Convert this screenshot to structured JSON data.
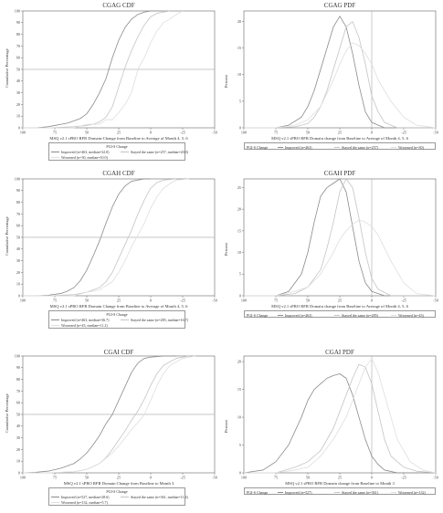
{
  "colors": {
    "improved": "#8a8a8a",
    "same": "#c4c4c4",
    "worsened": "#dedede",
    "axis": "#666",
    "refline": "#b5b5b5"
  },
  "chart_data": [
    {
      "type": "line",
      "title": "CGAG CDF",
      "xlabel": "MSQ v2.1 sPRO RFR Domain-Change from Baseline to Average of Month 4, 5, 6",
      "ylabel": "Cumulative Percentage",
      "xlim": [
        100,
        -50
      ],
      "ylim": [
        0,
        100
      ],
      "xticks": [
        100,
        75,
        50,
        25,
        0,
        -25,
        -50
      ],
      "yticks": [
        0,
        10,
        20,
        30,
        40,
        50,
        60,
        70,
        80,
        90,
        100
      ],
      "refline_y": 50,
      "legend": {
        "title": "PGI-S Change",
        "items": [
          "Improved (n=463, median=32.0)",
          "Stayed the same (n=257, median=20.0)",
          "Worsened (n=30, median=10.0)"
        ]
      },
      "series": [
        {
          "name": "Improved (n=463, median=32.0)",
          "x": [
            100,
            95,
            90,
            85,
            80,
            75,
            70,
            65,
            60,
            55,
            50,
            45,
            40,
            35,
            30,
            25,
            20,
            15,
            10,
            5,
            0,
            -5,
            -10
          ],
          "y": [
            0,
            0,
            0,
            0.5,
            1,
            2,
            3,
            4,
            6,
            8,
            12,
            20,
            30,
            42,
            60,
            75,
            86,
            93,
            97,
            99,
            100,
            100,
            100
          ]
        },
        {
          "name": "Stayed the same (n=257, median=20.0)",
          "x": [
            100,
            90,
            80,
            70,
            60,
            50,
            45,
            40,
            35,
            30,
            25,
            20,
            15,
            10,
            5,
            0,
            -5,
            -10,
            -15
          ],
          "y": [
            0,
            0,
            0,
            0.5,
            1,
            2,
            3,
            5,
            9,
            18,
            35,
            52,
            66,
            78,
            88,
            95,
            98,
            99,
            100
          ]
        },
        {
          "name": "Worsened (n=30, median=10.0)",
          "x": [
            100,
            80,
            60,
            50,
            40,
            35,
            30,
            25,
            20,
            15,
            10,
            5,
            0,
            -5,
            -10,
            -15,
            -20,
            -25
          ],
          "y": [
            0,
            0,
            0,
            3,
            3,
            7,
            7,
            13,
            20,
            30,
            50,
            60,
            73,
            83,
            90,
            93,
            97,
            100
          ]
        }
      ]
    },
    {
      "type": "line",
      "title": "CGAG PDF",
      "xlabel": "MSQ v2.1 sPRO RFR Domain change from Baseline to Average of Month 4, 5, 6",
      "ylabel": "Percent",
      "xlim": [
        100,
        -50
      ],
      "ylim": [
        0,
        22
      ],
      "xticks": [
        100,
        75,
        50,
        25,
        0,
        -25,
        -50
      ],
      "yticks": [
        0,
        5,
        10,
        15,
        20
      ],
      "refline_x": 0,
      "legend": {
        "title": "PGI-S Change",
        "items": [
          "Improved (n=463)",
          "Stayed the same (n=257)",
          "Worsened (n=30)"
        ]
      },
      "series": [
        {
          "name": "Improved (n=463)",
          "x": [
            100,
            75,
            65,
            55,
            50,
            45,
            40,
            35,
            30,
            25,
            20,
            15,
            10,
            5,
            0,
            -10,
            -25,
            -50
          ],
          "y": [
            0,
            0,
            0.5,
            2,
            4,
            7,
            11,
            15,
            19,
            21,
            19,
            14,
            8,
            3,
            1,
            0,
            0,
            0
          ]
        },
        {
          "name": "Stayed the same (n=257)",
          "x": [
            100,
            75,
            60,
            50,
            45,
            40,
            35,
            30,
            25,
            20,
            15,
            10,
            5,
            0,
            -5,
            -10,
            -20,
            -50
          ],
          "y": [
            0,
            0,
            0.2,
            0.8,
            2,
            4,
            7,
            11,
            15,
            19,
            20,
            17,
            12,
            6,
            3,
            1,
            0,
            0
          ]
        },
        {
          "name": "Worsened (n=30)",
          "x": [
            100,
            75,
            60,
            50,
            40,
            35,
            30,
            25,
            20,
            15,
            10,
            5,
            0,
            -5,
            -10,
            -15,
            -25,
            -35,
            -50
          ],
          "y": [
            0,
            0,
            0.5,
            1.5,
            4,
            6.5,
            9,
            12,
            14.5,
            16,
            15.5,
            14,
            12,
            9,
            7,
            5,
            2,
            0.5,
            0
          ]
        }
      ]
    },
    {
      "type": "line",
      "title": "CGAH CDF",
      "xlabel": "MSQ v2.1 sPRO RFR Domain Change from Baseline to Average of Month 4, 5, 6",
      "ylabel": "Cumulative Percentage",
      "xlim": [
        100,
        -50
      ],
      "ylim": [
        0,
        100
      ],
      "xticks": [
        100,
        75,
        50,
        25,
        0,
        -25,
        -50
      ],
      "yticks": [
        0,
        10,
        20,
        30,
        40,
        50,
        60,
        70,
        80,
        90,
        100
      ],
      "refline_y": 50,
      "legend": {
        "title": "PGI-S Change",
        "items": [
          "Improved (n=463, median=36.7)",
          "Stayed the same (n=285, median=16.7)",
          "Worsened (n=43, median=11.2)"
        ]
      },
      "series": [
        {
          "name": "Improved (n=463, median=36.7)",
          "x": [
            100,
            90,
            80,
            70,
            65,
            60,
            55,
            50,
            45,
            40,
            35,
            30,
            25,
            20,
            15,
            10,
            5,
            0
          ],
          "y": [
            0,
            0,
            0.5,
            2,
            4,
            7,
            13,
            22,
            34,
            47,
            62,
            76,
            87,
            94,
            98,
            99,
            100,
            100
          ]
        },
        {
          "name": "Stayed the same (n=285, median=16.7)",
          "x": [
            100,
            80,
            60,
            50,
            40,
            35,
            30,
            25,
            20,
            15,
            10,
            5,
            0,
            -5,
            -10,
            -20
          ],
          "y": [
            0,
            0,
            1,
            3,
            7,
            12,
            20,
            32,
            44,
            56,
            70,
            82,
            92,
            97,
            99,
            100
          ]
        },
        {
          "name": "Worsened (n=43, median=11.2)",
          "x": [
            100,
            60,
            50,
            40,
            30,
            25,
            20,
            15,
            10,
            5,
            0,
            -5,
            -10,
            -15,
            -20,
            -30
          ],
          "y": [
            0,
            0,
            3,
            5,
            12,
            20,
            30,
            42,
            52,
            62,
            75,
            85,
            92,
            96,
            99,
            100
          ]
        }
      ]
    },
    {
      "type": "line",
      "title": "CGAH PDF",
      "xlabel": "MSQ v2.1 sPRO RFR Domain change from Baseline to Average of Month 4, 5, 6",
      "ylabel": "Percent",
      "xlim": [
        100,
        -50
      ],
      "ylim": [
        0,
        27
      ],
      "xticks": [
        100,
        75,
        50,
        25,
        0,
        -25,
        -50
      ],
      "yticks": [
        0,
        5,
        10,
        15,
        20,
        25
      ],
      "refline_x": 0,
      "legend": {
        "title": "PGI-S Change",
        "items": [
          "Improved (n=463)",
          "Stayed the same (n=285)",
          "Worsened (n=43)"
        ]
      },
      "series": [
        {
          "name": "Improved (n=463)",
          "x": [
            100,
            75,
            65,
            55,
            50,
            45,
            40,
            35,
            30,
            25,
            20,
            15,
            10,
            5,
            0,
            -10,
            -50
          ],
          "y": [
            0,
            0,
            1,
            5,
            10,
            17,
            23,
            25,
            26,
            27,
            24,
            16,
            8,
            3,
            1,
            0,
            0
          ]
        },
        {
          "name": "Stayed the same (n=285)",
          "x": [
            100,
            75,
            60,
            50,
            40,
            35,
            30,
            25,
            20,
            15,
            10,
            5,
            0,
            -5,
            -15,
            -50
          ],
          "y": [
            0,
            0,
            0.5,
            2,
            6,
            11,
            17,
            24,
            27,
            25,
            18,
            10,
            4,
            1.5,
            0,
            0
          ]
        },
        {
          "name": "Worsened (n=43)",
          "x": [
            100,
            75,
            60,
            50,
            40,
            30,
            25,
            20,
            15,
            10,
            5,
            0,
            -5,
            -10,
            -15,
            -25,
            -35,
            -50
          ],
          "y": [
            0,
            0,
            1,
            2,
            5,
            10,
            13,
            15,
            16.5,
            17.5,
            17,
            16,
            14,
            11,
            8,
            3,
            0.5,
            0
          ]
        }
      ]
    },
    {
      "type": "line",
      "title": "CGAI CDF",
      "xlabel": "MSQ v2.1 sPRO RFR Domain Change from Baseline to Month 3",
      "ylabel": "Cumulative Percentage",
      "xlim": [
        100,
        -50
      ],
      "ylim": [
        0,
        100
      ],
      "xticks": [
        100,
        75,
        50,
        25,
        0,
        -25,
        -50
      ],
      "yticks": [
        0,
        10,
        20,
        30,
        40,
        50,
        60,
        70,
        80,
        90,
        100
      ],
      "refline_y": 50,
      "legend": {
        "title": "PGI-S Change",
        "items": [
          "Improved (n=527, median=28.6)",
          "Stayed the same (n=361, median=11.4)",
          "Worsened (n=132, median=5.7)"
        ]
      },
      "series": [
        {
          "name": "Improved (n=527, median=28.6)",
          "x": [
            100,
            90,
            80,
            70,
            60,
            55,
            50,
            45,
            40,
            35,
            30,
            25,
            20,
            15,
            10,
            5,
            0,
            -10,
            -20
          ],
          "y": [
            0,
            0.5,
            1.5,
            4,
            8,
            12,
            17,
            24,
            32,
            42,
            50,
            62,
            74,
            86,
            94,
            98,
            99,
            100,
            100
          ]
        },
        {
          "name": "Stayed the same (n=361, median=11.4)",
          "x": [
            100,
            80,
            60,
            50,
            40,
            35,
            30,
            25,
            20,
            15,
            10,
            5,
            0,
            -5,
            -10,
            -20,
            -30
          ],
          "y": [
            0,
            0,
            1,
            3,
            8,
            13,
            20,
            28,
            36,
            45,
            53,
            63,
            75,
            85,
            92,
            98,
            100
          ]
        },
        {
          "name": "Worsened (n=132, median=5.7)",
          "x": [
            100,
            80,
            60,
            50,
            40,
            30,
            25,
            20,
            15,
            10,
            5,
            0,
            -5,
            -10,
            -15,
            -25,
            -35
          ],
          "y": [
            0,
            0,
            1,
            3,
            8,
            17,
            23,
            30,
            37,
            43,
            50,
            62,
            75,
            85,
            92,
            98,
            100
          ]
        }
      ]
    },
    {
      "type": "line",
      "title": "CGAI PDF",
      "xlabel": "MSQ v2.1 sPRO RFR Domain change from Baseline to Month 3",
      "ylabel": "Percent",
      "xlim": [
        100,
        -50
      ],
      "ylim": [
        0,
        21
      ],
      "xticks": [
        100,
        75,
        50,
        25,
        0,
        -25,
        -50
      ],
      "yticks": [
        0,
        5,
        10,
        15,
        20
      ],
      "refline_x": 0,
      "legend": {
        "title": "PGI-S Change",
        "items": [
          "Improved (n=527)",
          "Stayed the same (n=361)",
          "Worsened (n=132)"
        ]
      },
      "series": [
        {
          "name": "Improved (n=527)",
          "x": [
            100,
            85,
            75,
            65,
            55,
            50,
            45,
            40,
            35,
            30,
            25,
            20,
            15,
            10,
            5,
            0,
            -5,
            -10,
            -20,
            -50
          ],
          "y": [
            0,
            0.5,
            2,
            5,
            10,
            13,
            15,
            16,
            17,
            17.5,
            17.8,
            17,
            14,
            10,
            6,
            3,
            1.5,
            0.5,
            0,
            0
          ]
        },
        {
          "name": "Stayed the same (n=361)",
          "x": [
            100,
            75,
            60,
            50,
            40,
            30,
            25,
            20,
            15,
            10,
            5,
            0,
            -5,
            -10,
            -15,
            -25,
            -35,
            -50
          ],
          "y": [
            0,
            0,
            1,
            2,
            4,
            8,
            11,
            14,
            17,
            19.5,
            19,
            16,
            11,
            6,
            3,
            1,
            0.3,
            0
          ]
        },
        {
          "name": "Worsened (n=132)",
          "x": [
            100,
            75,
            60,
            50,
            40,
            30,
            20,
            15,
            10,
            5,
            0,
            -5,
            -10,
            -15,
            -20,
            -30,
            -40,
            -50
          ],
          "y": [
            0,
            0,
            0.5,
            1,
            3,
            6,
            10,
            13,
            16,
            19,
            20.5,
            18,
            14,
            10,
            6,
            2,
            0.5,
            0
          ]
        }
      ]
    }
  ]
}
